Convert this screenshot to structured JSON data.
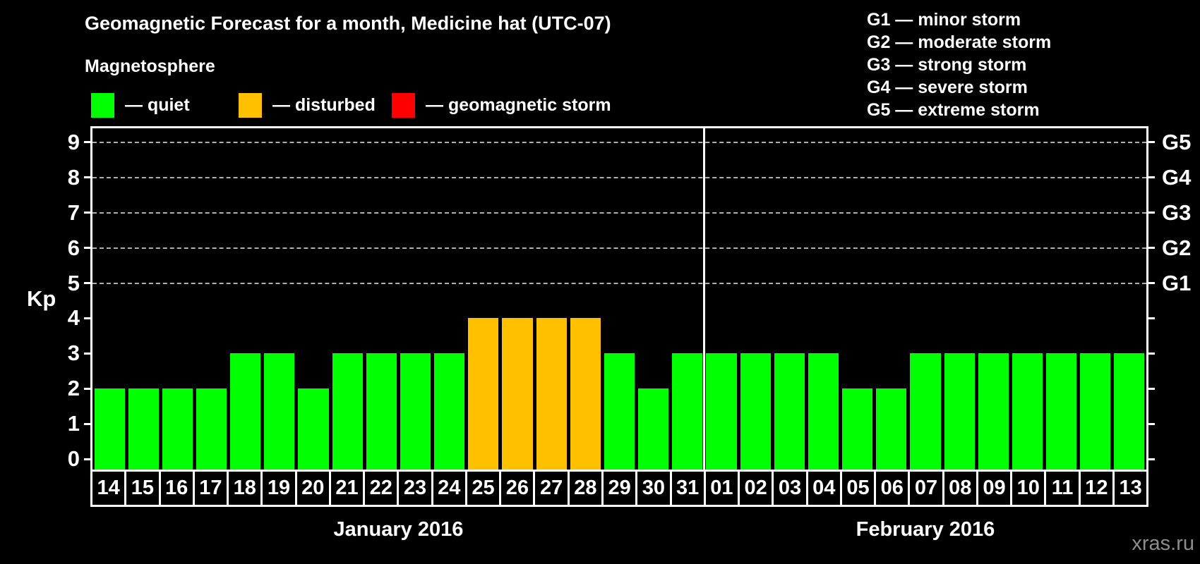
{
  "title": "Geomagnetic Forecast for a month, Medicine hat (UTC-07)",
  "magnetosphere_legend": {
    "heading": "Magnetosphere",
    "items": [
      {
        "state": "quiet",
        "label": "— quiet",
        "color": "#00ff00"
      },
      {
        "state": "disturbed",
        "label": "— disturbed",
        "color": "#ffc000"
      },
      {
        "state": "storm",
        "label": "— geomagnetic storm",
        "color": "#ff0000"
      }
    ]
  },
  "storm_scale_legend": [
    "G1 — minor storm",
    "G2 — moderate storm",
    "G3 — strong storm",
    "G4 — severe storm",
    "G5 — extreme storm"
  ],
  "watermark": "xras.ru",
  "chart_data": {
    "type": "bar",
    "title": "Geomagnetic Forecast for a month, Medicine hat (UTC-07)",
    "ylabel": "Kp",
    "ylim": [
      -0.3,
      9.4
    ],
    "yticks": [
      0,
      1,
      2,
      3,
      4,
      5,
      6,
      7,
      8,
      9
    ],
    "gridlines_at": [
      5,
      6,
      7,
      8,
      9
    ],
    "grid": "dashed horizontal lines at Kp 5-9",
    "right_axis_ticks": [
      0,
      1,
      2,
      3,
      4,
      5,
      6,
      7,
      8,
      9
    ],
    "right_axis_labels": [
      {
        "value": 5,
        "label": "G1"
      },
      {
        "value": 6,
        "label": "G2"
      },
      {
        "value": 7,
        "label": "G3"
      },
      {
        "value": 8,
        "label": "G4"
      },
      {
        "value": 9,
        "label": "G5"
      }
    ],
    "bar_colors": {
      "quiet": "#00ff00",
      "disturbed": "#ffc000",
      "storm": "#ff0000"
    },
    "categories": [
      "14",
      "15",
      "16",
      "17",
      "18",
      "19",
      "20",
      "21",
      "22",
      "23",
      "24",
      "25",
      "26",
      "27",
      "28",
      "29",
      "30",
      "31",
      "01",
      "02",
      "03",
      "04",
      "05",
      "06",
      "07",
      "08",
      "09",
      "10",
      "11",
      "12",
      "13"
    ],
    "values": [
      2,
      2,
      2,
      2,
      3,
      3,
      2,
      3,
      3,
      3,
      3,
      4,
      4,
      4,
      4,
      3,
      2,
      3,
      3,
      3,
      3,
      3,
      2,
      2,
      3,
      3,
      3,
      3,
      3,
      3,
      3
    ],
    "months": [
      {
        "label": "January 2016",
        "days": [
          {
            "day": "14",
            "kp": 2,
            "state": "quiet"
          },
          {
            "day": "15",
            "kp": 2,
            "state": "quiet"
          },
          {
            "day": "16",
            "kp": 2,
            "state": "quiet"
          },
          {
            "day": "17",
            "kp": 2,
            "state": "quiet"
          },
          {
            "day": "18",
            "kp": 3,
            "state": "quiet"
          },
          {
            "day": "19",
            "kp": 3,
            "state": "quiet"
          },
          {
            "day": "20",
            "kp": 2,
            "state": "quiet"
          },
          {
            "day": "21",
            "kp": 3,
            "state": "quiet"
          },
          {
            "day": "22",
            "kp": 3,
            "state": "quiet"
          },
          {
            "day": "23",
            "kp": 3,
            "state": "quiet"
          },
          {
            "day": "24",
            "kp": 3,
            "state": "quiet"
          },
          {
            "day": "25",
            "kp": 4,
            "state": "disturbed"
          },
          {
            "day": "26",
            "kp": 4,
            "state": "disturbed"
          },
          {
            "day": "27",
            "kp": 4,
            "state": "disturbed"
          },
          {
            "day": "28",
            "kp": 4,
            "state": "disturbed"
          },
          {
            "day": "29",
            "kp": 3,
            "state": "quiet"
          },
          {
            "day": "30",
            "kp": 2,
            "state": "quiet"
          },
          {
            "day": "31",
            "kp": 3,
            "state": "quiet"
          }
        ]
      },
      {
        "label": "February 2016",
        "days": [
          {
            "day": "01",
            "kp": 3,
            "state": "quiet"
          },
          {
            "day": "02",
            "kp": 3,
            "state": "quiet"
          },
          {
            "day": "03",
            "kp": 3,
            "state": "quiet"
          },
          {
            "day": "04",
            "kp": 3,
            "state": "quiet"
          },
          {
            "day": "05",
            "kp": 2,
            "state": "quiet"
          },
          {
            "day": "06",
            "kp": 2,
            "state": "quiet"
          },
          {
            "day": "07",
            "kp": 3,
            "state": "quiet"
          },
          {
            "day": "08",
            "kp": 3,
            "state": "quiet"
          },
          {
            "day": "09",
            "kp": 3,
            "state": "quiet"
          },
          {
            "day": "10",
            "kp": 3,
            "state": "quiet"
          },
          {
            "day": "11",
            "kp": 3,
            "state": "quiet"
          },
          {
            "day": "12",
            "kp": 3,
            "state": "quiet"
          },
          {
            "day": "13",
            "kp": 3,
            "state": "quiet"
          }
        ]
      }
    ]
  }
}
